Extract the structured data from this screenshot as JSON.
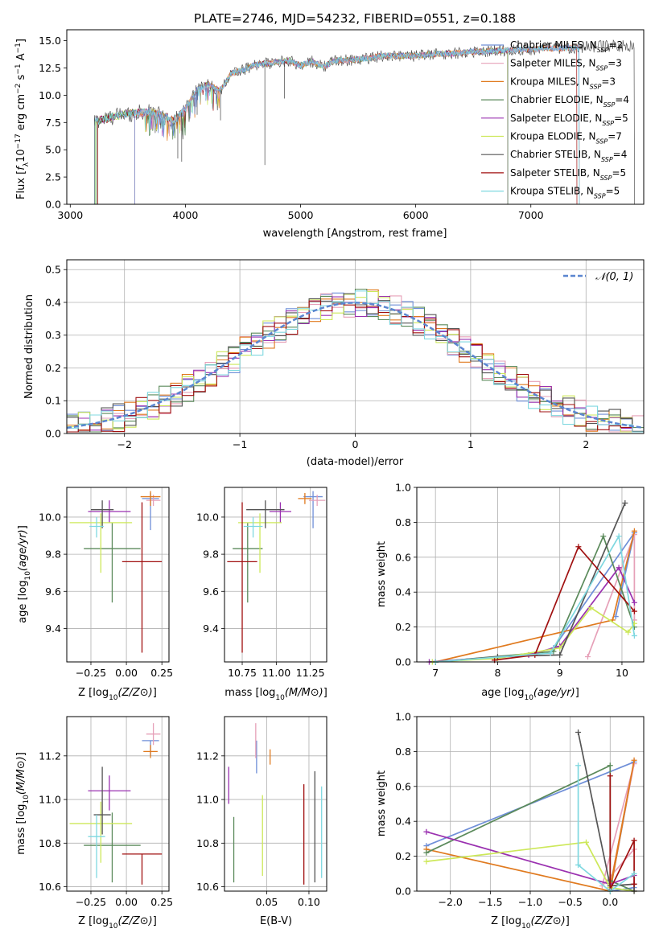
{
  "colors": {
    "chabrier_miles": "#6f8fd8",
    "salpeter_miles": "#e6a0b8",
    "kroupa_miles": "#e07a1f",
    "chabrier_elodie": "#5b8a5b",
    "salpeter_elodie": "#9a30b0",
    "kroupa_elodie": "#cde85a",
    "chabrier_stelib": "#555555",
    "salpeter_stelib": "#a01010",
    "kroupa_stelib": "#7fd8e0",
    "gauss": "#5b86d0",
    "grid": "#b0b0b0"
  },
  "chart_data": [
    {
      "id": "spectrum",
      "type": "line",
      "title": "PLATE=2746, MJD=54232, FIBERID=0551, z=0.188",
      "xlabel": "wavelength [Angstrom, rest frame]",
      "ylabel": "Flux [f_λ10^-17 erg cm^-2 s^-1 A^-1]",
      "xlim": [
        2970,
        7980
      ],
      "ylim": [
        0,
        16
      ],
      "xticks": [
        3000,
        4000,
        5000,
        6000,
        7000
      ],
      "yticks": [
        0.0,
        2.5,
        5.0,
        7.5,
        10.0,
        12.5,
        15.0
      ],
      "ytick_labels": [
        "0.0",
        "2.5",
        "5.0",
        "7.5",
        "10.0",
        "12.5",
        "15.0"
      ],
      "legend_position": "right",
      "legend": [
        {
          "model": "Chabrier MILES",
          "n": "2",
          "color": "chabrier_miles"
        },
        {
          "model": "Salpeter MILES",
          "n": "3",
          "color": "salpeter_miles"
        },
        {
          "model": "Kroupa MILES",
          "n": "3",
          "color": "kroupa_miles"
        },
        {
          "model": "Chabrier ELODIE",
          "n": "4",
          "color": "chabrier_elodie"
        },
        {
          "model": "Salpeter ELODIE",
          "n": "5",
          "color": "salpeter_elodie"
        },
        {
          "model": "Kroupa ELODIE",
          "n": "7",
          "color": "kroupa_elodie"
        },
        {
          "model": "Chabrier STELIB",
          "n": "4",
          "color": "chabrier_stelib"
        },
        {
          "model": "Salpeter STELIB",
          "n": "5",
          "color": "salpeter_stelib"
        },
        {
          "model": "Kroupa STELIB",
          "n": "5",
          "color": "kroupa_stelib"
        }
      ],
      "continuum": {
        "x": [
          3210,
          3300,
          3400,
          3500,
          3600,
          3700,
          3800,
          3900,
          4000,
          4100,
          4200,
          4300,
          4400,
          4500,
          4600,
          4700,
          4800,
          4900,
          5000,
          5100,
          5200,
          5300,
          5400,
          5500,
          5600,
          5700,
          5800,
          5900,
          6000,
          6100,
          6200,
          6300,
          6400,
          6500,
          6600,
          6700,
          6800,
          6900,
          7000,
          7100,
          7200,
          7300,
          7400,
          7500,
          7600,
          7700,
          7800,
          7900
        ],
        "y": [
          7.6,
          7.8,
          8.1,
          8.3,
          8.4,
          8.5,
          8.2,
          7.6,
          8.8,
          10.5,
          11.0,
          10.4,
          12.0,
          12.3,
          12.8,
          12.9,
          13.0,
          13.2,
          12.7,
          13.1,
          12.6,
          13.2,
          13.2,
          13.3,
          13.4,
          13.6,
          13.6,
          13.6,
          13.6,
          13.7,
          13.8,
          13.8,
          13.9,
          14.0,
          14.0,
          14.1,
          14.1,
          14.2,
          14.2,
          14.3,
          14.3,
          14.3,
          14.4,
          14.4,
          14.5,
          14.5,
          14.5,
          14.5
        ]
      },
      "absorption_lines": [
        {
          "x": 3934,
          "y": 4.2
        },
        {
          "x": 3968,
          "y": 3.9
        },
        {
          "x": 4102,
          "y": 8.2
        },
        {
          "x": 4305,
          "y": 7.7
        },
        {
          "x": 4861,
          "y": 9.7
        },
        {
          "x": 4690,
          "y": 3.6
        }
      ]
    },
    {
      "id": "residuals",
      "type": "bar",
      "xlabel": "(data-model)/error",
      "ylabel": "Normed distribution",
      "xlim": [
        -2.5,
        2.5
      ],
      "ylim": [
        0,
        0.53
      ],
      "xticks": [
        -2,
        -1,
        0,
        1,
        2
      ],
      "xtick_labels": [
        "−2",
        "−1",
        "0",
        "1",
        "2"
      ],
      "yticks": [
        0.0,
        0.1,
        0.2,
        0.3,
        0.4,
        0.5
      ],
      "ytick_labels": [
        "0.0",
        "0.1",
        "0.2",
        "0.3",
        "0.4",
        "0.5"
      ],
      "legend_label": "N(0,1)",
      "legend_position": "top-right",
      "bin_width": 0.1
    },
    {
      "id": "age_vs_z",
      "type": "scatter",
      "xlabel": "Z [log10(Z/Z⊙)]",
      "ylabel": "age  [log10(age/yr)]",
      "xlim": [
        -0.42,
        0.3
      ],
      "ylim": [
        9.22,
        10.16
      ],
      "xticks": [
        -0.25,
        0.0,
        0.25
      ],
      "xtick_labels": [
        "−0.25",
        "0.00",
        "0.25"
      ],
      "yticks": [
        9.4,
        9.6,
        9.8,
        10.0
      ],
      "ytick_labels": [
        "9.4",
        "9.6",
        "9.8",
        "10.0"
      ],
      "points": [
        {
          "model": "chabrier_miles",
          "x": 0.17,
          "y": 10.1,
          "xerr": 0.06,
          "yerr_lo": 0.17,
          "yerr_hi": 0.03
        },
        {
          "model": "salpeter_miles",
          "x": 0.19,
          "y": 10.09,
          "xerr": 0.05,
          "yerr_lo": 0.03,
          "yerr_hi": 0.03
        },
        {
          "model": "kroupa_miles",
          "x": 0.17,
          "y": 10.11,
          "xerr": 0.07,
          "yerr_lo": 0.05,
          "yerr_hi": 0.03
        },
        {
          "model": "chabrier_elodie",
          "x": -0.1,
          "y": 9.83,
          "xerr": 0.2,
          "yerr_lo": 0.29,
          "yerr_hi": 0.14
        },
        {
          "model": "salpeter_elodie",
          "x": -0.12,
          "y": 10.03,
          "xerr": 0.15,
          "yerr_lo": 0.06,
          "yerr_hi": 0.06
        },
        {
          "model": "kroupa_elodie",
          "x": -0.18,
          "y": 9.97,
          "xerr": 0.22,
          "yerr_lo": 0.27,
          "yerr_hi": 0.05
        },
        {
          "model": "chabrier_stelib",
          "x": -0.17,
          "y": 10.04,
          "xerr": 0.08,
          "yerr_lo": 0.1,
          "yerr_hi": 0.05
        },
        {
          "model": "salpeter_stelib",
          "x": 0.11,
          "y": 9.76,
          "xerr": 0.14,
          "yerr_lo": 0.49,
          "yerr_hi": 0.32
        },
        {
          "model": "kroupa_stelib",
          "x": -0.21,
          "y": 9.95,
          "xerr": 0.05,
          "yerr_lo": 0.06,
          "yerr_hi": 0.05
        }
      ]
    },
    {
      "id": "age_vs_mass",
      "type": "scatter",
      "xlabel": "mass [log10(M/M⊙)]",
      "ylabel": "",
      "xlim": [
        10.62,
        11.37
      ],
      "ylim": [
        9.22,
        10.16
      ],
      "xticks": [
        10.75,
        11.0,
        11.25
      ],
      "xtick_labels": [
        "10.75",
        "11.00",
        "11.25"
      ],
      "yticks": [
        9.4,
        9.6,
        9.8,
        10.0
      ],
      "ytick_labels": [
        "9.4",
        "9.6",
        "9.8",
        "10.0"
      ],
      "points": [
        {
          "model": "chabrier_miles",
          "x": 11.27,
          "y": 10.11,
          "xerr": 0.07,
          "yerr_lo": 0.17,
          "yerr_hi": 0.03
        },
        {
          "model": "salpeter_miles",
          "x": 11.3,
          "y": 10.09,
          "xerr": 0.06,
          "yerr_lo": 0.03,
          "yerr_hi": 0.03
        },
        {
          "model": "kroupa_miles",
          "x": 11.21,
          "y": 10.1,
          "xerr": 0.05,
          "yerr_lo": 0.03,
          "yerr_hi": 0.03
        },
        {
          "model": "chabrier_elodie",
          "x": 10.79,
          "y": 9.83,
          "xerr": 0.11,
          "yerr_lo": 0.29,
          "yerr_hi": 0.14
        },
        {
          "model": "salpeter_elodie",
          "x": 11.03,
          "y": 10.03,
          "xerr": 0.08,
          "yerr_lo": 0.06,
          "yerr_hi": 0.05
        },
        {
          "model": "kroupa_elodie",
          "x": 10.88,
          "y": 9.97,
          "xerr": 0.16,
          "yerr_lo": 0.27,
          "yerr_hi": 0.05
        },
        {
          "model": "chabrier_stelib",
          "x": 10.92,
          "y": 10.04,
          "xerr": 0.14,
          "yerr_lo": 0.1,
          "yerr_hi": 0.05
        },
        {
          "model": "salpeter_stelib",
          "x": 10.75,
          "y": 9.76,
          "xerr": 0.11,
          "yerr_lo": 0.49,
          "yerr_hi": 0.32
        },
        {
          "model": "kroupa_stelib",
          "x": 10.83,
          "y": 9.95,
          "xerr": 0.07,
          "yerr_lo": 0.06,
          "yerr_hi": 0.05
        }
      ]
    },
    {
      "id": "weight_vs_age",
      "type": "line",
      "xlabel": "age  [log10(age/yr)]",
      "ylabel": "mass weight",
      "xlim": [
        6.7,
        10.35
      ],
      "ylim": [
        0,
        1.0
      ],
      "xticks": [
        7,
        8,
        9,
        10
      ],
      "xtick_labels": [
        "7",
        "8",
        "9",
        "10"
      ],
      "yticks": [
        0.0,
        0.2,
        0.4,
        0.6,
        0.8,
        1.0
      ],
      "ytick_labels": [
        "0.0",
        "0.2",
        "0.4",
        "0.6",
        "0.8",
        "1.0"
      ],
      "series": [
        {
          "model": "chabrier_miles",
          "x": [
            8.9,
            10.2,
            9.9
          ],
          "y": [
            0.08,
            0.74,
            0.26
          ]
        },
        {
          "model": "salpeter_miles",
          "x": [
            9.45,
            10.2,
            10.2
          ],
          "y": [
            0.03,
            0.73,
            0.24
          ]
        },
        {
          "model": "kroupa_miles",
          "x": [
            7.0,
            9.85,
            10.2
          ],
          "y": [
            0.0,
            0.24,
            0.75
          ]
        },
        {
          "model": "chabrier_elodie",
          "x": [
            7.0,
            8.9,
            9.7,
            10.2
          ],
          "y": [
            0.0,
            0.06,
            0.72,
            0.2
          ]
        },
        {
          "model": "salpeter_elodie",
          "x": [
            6.9,
            8.5,
            9.0,
            9.95,
            10.2
          ],
          "y": [
            0.0,
            0.04,
            0.09,
            0.54,
            0.34
          ]
        },
        {
          "model": "kroupa_elodie",
          "x": [
            6.95,
            8.0,
            9.0,
            9.5,
            10.1,
            10.2
          ],
          "y": [
            0.0,
            0.02,
            0.08,
            0.31,
            0.17,
            0.22
          ]
        },
        {
          "model": "chabrier_stelib",
          "x": [
            7.0,
            8.0,
            9.0,
            10.05
          ],
          "y": [
            0.0,
            0.03,
            0.04,
            0.91
          ]
        },
        {
          "model": "salpeter_stelib",
          "x": [
            7.95,
            8.6,
            9.3,
            10.2
          ],
          "y": [
            0.01,
            0.04,
            0.66,
            0.29
          ]
        },
        {
          "model": "kroupa_stelib",
          "x": [
            7.0,
            8.85,
            9.95,
            10.2
          ],
          "y": [
            0.0,
            0.05,
            0.72,
            0.15
          ]
        }
      ]
    },
    {
      "id": "mass_vs_z",
      "type": "scatter",
      "xlabel": "Z [log10(Z/Z⊙)]",
      "ylabel": "mass [log10(M/M⊙)]",
      "xlim": [
        -0.42,
        0.3
      ],
      "ylim": [
        10.58,
        11.38
      ],
      "xticks": [
        -0.25,
        0.0,
        0.25
      ],
      "xtick_labels": [
        "−0.25",
        "0.00",
        "0.25"
      ],
      "yticks": [
        10.6,
        10.8,
        11.0,
        11.2
      ],
      "ytick_labels": [
        "10.6",
        "10.8",
        "11.0",
        "11.2"
      ],
      "points": [
        {
          "model": "chabrier_miles",
          "x": 0.17,
          "y": 11.27,
          "xerr": 0.06,
          "yerr_lo": 0.07,
          "yerr_hi": 0.0
        },
        {
          "model": "salpeter_miles",
          "x": 0.19,
          "y": 11.3,
          "xerr": 0.05,
          "yerr_lo": 0.05,
          "yerr_hi": 0.05
        },
        {
          "model": "kroupa_miles",
          "x": 0.17,
          "y": 11.22,
          "xerr": 0.05,
          "yerr_lo": 0.03,
          "yerr_hi": 0.03
        },
        {
          "model": "chabrier_elodie",
          "x": -0.1,
          "y": 10.79,
          "xerr": 0.2,
          "yerr_lo": 0.17,
          "yerr_hi": 0.15
        },
        {
          "model": "salpeter_elodie",
          "x": -0.12,
          "y": 11.04,
          "xerr": 0.15,
          "yerr_lo": 0.09,
          "yerr_hi": 0.07
        },
        {
          "model": "kroupa_elodie",
          "x": -0.18,
          "y": 10.89,
          "xerr": 0.22,
          "yerr_lo": 0.18,
          "yerr_hi": 0.1
        },
        {
          "model": "chabrier_stelib",
          "x": -0.17,
          "y": 10.93,
          "xerr": 0.06,
          "yerr_lo": 0.09,
          "yerr_hi": 0.22
        },
        {
          "model": "salpeter_stelib",
          "x": 0.11,
          "y": 10.75,
          "xerr": 0.14,
          "yerr_lo": 0.14,
          "yerr_hi": 0.0
        },
        {
          "model": "kroupa_stelib",
          "x": -0.21,
          "y": 10.83,
          "xerr": 0.06,
          "yerr_lo": 0.19,
          "yerr_hi": 0.1
        }
      ]
    },
    {
      "id": "mass_vs_ebv",
      "type": "scatter",
      "xlabel": "E(B-V)",
      "ylabel": "",
      "xlim": [
        0.0,
        0.121
      ],
      "ylim": [
        10.58,
        11.38
      ],
      "xticks": [
        0.05,
        0.1
      ],
      "xtick_labels": [
        "0.05",
        "0.10"
      ],
      "yticks": [
        10.6,
        10.8,
        11.0,
        11.2
      ],
      "ytick_labels": [
        "10.6",
        "10.8",
        "11.0",
        "11.2"
      ],
      "points": [
        {
          "model": "chabrier_miles",
          "x": 0.038,
          "y": 11.2,
          "yerr_lo": 0.08,
          "yerr_hi": 0.07
        },
        {
          "model": "salpeter_miles",
          "x": 0.037,
          "y": 11.25,
          "yerr_lo": 0.06,
          "yerr_hi": 0.1
        },
        {
          "model": "kroupa_miles",
          "x": 0.054,
          "y": 11.2,
          "yerr_lo": 0.04,
          "yerr_hi": 0.03
        },
        {
          "model": "chabrier_elodie",
          "x": 0.011,
          "y": 10.76,
          "yerr_lo": 0.14,
          "yerr_hi": 0.16
        },
        {
          "model": "salpeter_elodie",
          "x": 0.005,
          "y": 11.05,
          "yerr_lo": 0.07,
          "yerr_hi": 0.1
        },
        {
          "model": "kroupa_elodie",
          "x": 0.045,
          "y": 10.85,
          "yerr_lo": 0.2,
          "yerr_hi": 0.17
        },
        {
          "model": "chabrier_stelib",
          "x": 0.107,
          "y": 10.9,
          "yerr_lo": 0.28,
          "yerr_hi": 0.23
        },
        {
          "model": "salpeter_stelib",
          "x": 0.094,
          "y": 10.84,
          "yerr_lo": 0.23,
          "yerr_hi": 0.23
        },
        {
          "model": "kroupa_stelib",
          "x": 0.115,
          "y": 10.85,
          "yerr_lo": 0.21,
          "yerr_hi": 0.21
        }
      ]
    },
    {
      "id": "weight_vs_z",
      "type": "line",
      "xlabel": "Z [log10(Z/Z⊙)]",
      "ylabel": "mass weight",
      "xlim": [
        -2.42,
        0.42
      ],
      "ylim": [
        0,
        1.0
      ],
      "xticks": [
        -2.0,
        -1.5,
        -1.0,
        -0.5,
        0.0
      ],
      "xtick_labels": [
        "−2.0",
        "−1.5",
        "−1.0",
        "−0.5",
        "0.0"
      ],
      "yticks": [
        0.0,
        0.2,
        0.4,
        0.6,
        0.8,
        1.0
      ],
      "ytick_labels": [
        "0.0",
        "0.2",
        "0.4",
        "0.6",
        "0.8",
        "1.0"
      ],
      "series": [
        {
          "model": "chabrier_miles",
          "x": [
            -2.3,
            0.3,
            0.0,
            0.3
          ],
          "y": [
            0.26,
            0.74,
            0.0,
            0.02
          ]
        },
        {
          "model": "salpeter_miles",
          "x": [
            0.0,
            0.3,
            -0.1,
            0.3
          ],
          "y": [
            0.03,
            0.73,
            0.03,
            0.24
          ]
        },
        {
          "model": "kroupa_miles",
          "x": [
            -2.3,
            0.0,
            0.3,
            0.0
          ],
          "y": [
            0.24,
            0.0,
            0.75,
            0.02
          ]
        },
        {
          "model": "chabrier_elodie",
          "x": [
            -2.3,
            0.0,
            0.0,
            0.3
          ],
          "y": [
            0.22,
            0.72,
            0.06,
            0.0
          ]
        },
        {
          "model": "salpeter_elodie",
          "x": [
            -2.3,
            0.0,
            0.3,
            0.3
          ],
          "y": [
            0.34,
            0.04,
            0.09,
            0.0
          ]
        },
        {
          "model": "kroupa_elodie",
          "x": [
            -2.3,
            -0.3,
            0.0,
            0.3
          ],
          "y": [
            0.17,
            0.28,
            0.02,
            0.0
          ]
        },
        {
          "model": "chabrier_stelib",
          "x": [
            -0.4,
            0.0,
            0.3,
            0.3
          ],
          "y": [
            0.91,
            0.03,
            0.04,
            0.0
          ]
        },
        {
          "model": "salpeter_stelib",
          "x": [
            0.0,
            0.0,
            0.3,
            0.3
          ],
          "y": [
            0.66,
            0.01,
            0.29,
            0.04
          ]
        },
        {
          "model": "kroupa_stelib",
          "x": [
            -0.4,
            -0.4,
            0.0,
            0.3
          ],
          "y": [
            0.72,
            0.15,
            0.0,
            0.1
          ]
        }
      ]
    }
  ]
}
